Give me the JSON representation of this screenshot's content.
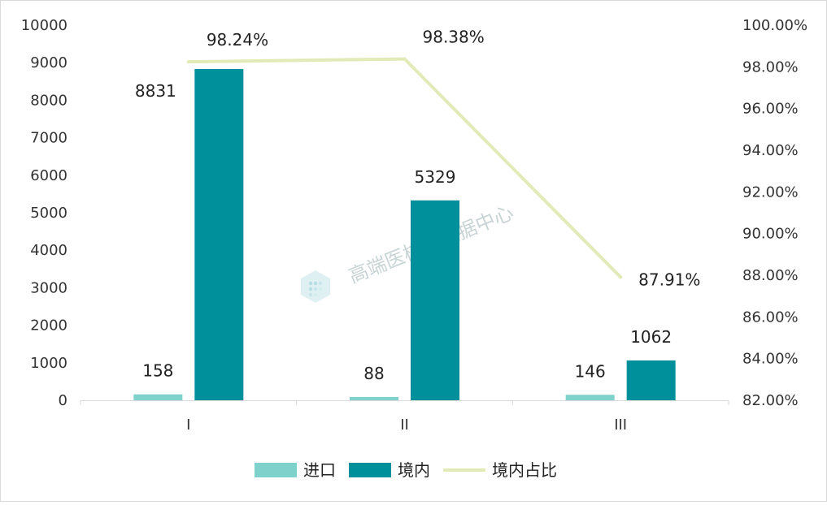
{
  "chart_data": {
    "type": "bar",
    "categories": [
      "I",
      "II",
      "III"
    ],
    "series": [
      {
        "name": "进口",
        "kind": "bar",
        "axis": "left",
        "color": "#7fd1cb",
        "values": [
          158,
          88,
          146
        ],
        "labels": [
          "158",
          "88",
          "146"
        ]
      },
      {
        "name": "境内",
        "kind": "bar",
        "axis": "left",
        "color": "#00909c",
        "values": [
          8831,
          5329,
          1062
        ],
        "labels": [
          "8831",
          "5329",
          "1062"
        ]
      },
      {
        "name": "境内占比",
        "kind": "line",
        "axis": "right",
        "color": "#e2ebb8",
        "values": [
          98.24,
          98.38,
          87.91
        ],
        "labels": [
          "98.24%",
          "98.38%",
          "87.91%"
        ]
      }
    ],
    "left_axis": {
      "min": 0,
      "max": 10000,
      "ticks": [
        "0",
        "1000",
        "2000",
        "3000",
        "4000",
        "5000",
        "6000",
        "7000",
        "8000",
        "9000",
        "10000"
      ]
    },
    "right_axis": {
      "min": 82,
      "max": 100,
      "ticks": [
        "82.00%",
        "84.00%",
        "86.00%",
        "88.00%",
        "90.00%",
        "92.00%",
        "94.00%",
        "96.00%",
        "98.00%",
        "100.00%"
      ]
    },
    "grid": false,
    "legend": "bottom",
    "watermark": "高端医械院数据中心"
  }
}
